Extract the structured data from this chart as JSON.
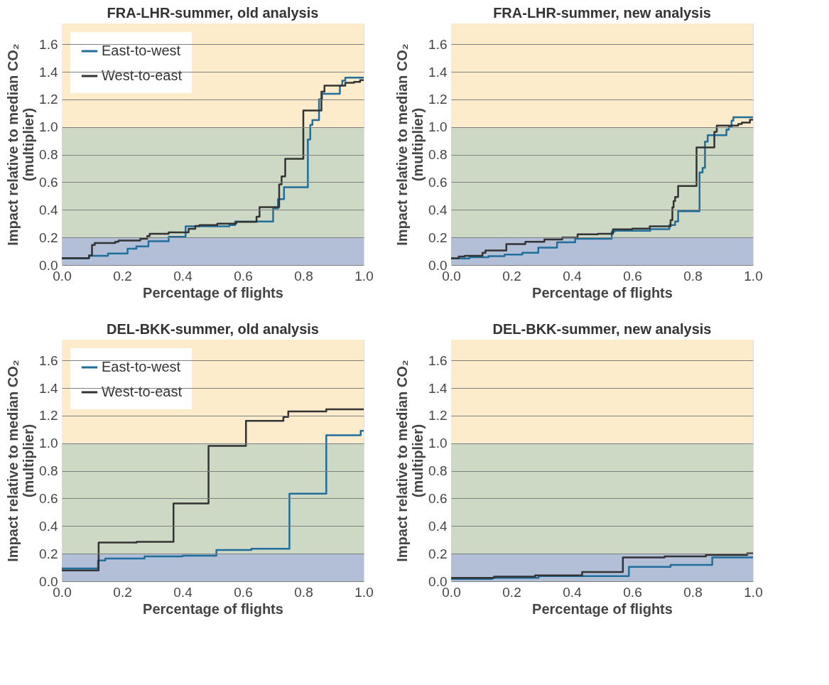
{
  "chart_data": [
    {
      "type": "step",
      "title": "FRA-LHR-summer, old analysis",
      "xlabel": "Percentage of flights",
      "ylabel": "Impact relative to median CO₂ (multiplier)",
      "xlim": [
        0,
        1
      ],
      "ylim": [
        0,
        1.75
      ],
      "xticks": [
        {
          "value": 0,
          "label": "0.0"
        },
        {
          "value": 0.2,
          "label": "0.2"
        },
        {
          "value": 0.4,
          "label": "0.4"
        },
        {
          "value": 0.6,
          "label": "0.6"
        },
        {
          "value": 0.8,
          "label": "0.8"
        },
        {
          "value": 1,
          "label": "1.0"
        }
      ],
      "yticks": [
        {
          "value": 0,
          "label": "0.0"
        },
        {
          "value": 0.2,
          "label": "0.2"
        },
        {
          "value": 0.4,
          "label": "0.4"
        },
        {
          "value": 0.6,
          "label": "0.6"
        },
        {
          "value": 0.8,
          "label": "0.8"
        },
        {
          "value": 1,
          "label": "1.0"
        },
        {
          "value": 1.2,
          "label": "1.2"
        },
        {
          "value": 1.4,
          "label": "1.4"
        },
        {
          "value": 1.6,
          "label": "1.6"
        }
      ],
      "grid": "y",
      "legend": "top left",
      "line_style": "solid",
      "marker": "none",
      "bands": [
        {
          "axis": "y",
          "from": 0,
          "to": 0.2,
          "color": "#b3bfd7"
        },
        {
          "axis": "y",
          "from": 0.2,
          "to": 1.0,
          "color": "#cdd8c5"
        },
        {
          "axis": "y",
          "from": 1.0,
          "to": 1.75,
          "color": "#fdeccc"
        }
      ],
      "series": [
        {
          "name": "East-to-west",
          "color": "#1f6e9c",
          "x": [
            0,
            0.09,
            0.153,
            0.218,
            0.247,
            0.287,
            0.354,
            0.41,
            0.555,
            0.574,
            0.7,
            0.716,
            0.736,
            0.815,
            0.823,
            0.83,
            0.852,
            0.862,
            0.921,
            0.929,
            0.939,
            1.0
          ],
          "values": [
            0.047,
            0.067,
            0.084,
            0.118,
            0.135,
            0.173,
            0.204,
            0.28,
            0.29,
            0.315,
            0.41,
            0.477,
            0.564,
            0.91,
            1.015,
            1.05,
            1.2,
            1.24,
            1.3,
            1.336,
            1.357,
            1.357
          ]
        },
        {
          "name": "West-to-east",
          "color": "#333333",
          "x": [
            0,
            0.09,
            0.1,
            0.109,
            0.177,
            0.188,
            0.26,
            0.283,
            0.291,
            0.354,
            0.42,
            0.442,
            0.456,
            0.515,
            0.578,
            0.645,
            0.655,
            0.72,
            0.728,
            0.74,
            0.8,
            0.86,
            0.87,
            0.939,
            0.968,
            0.988,
            1.0
          ],
          "values": [
            0.05,
            0.069,
            0.145,
            0.16,
            0.168,
            0.177,
            0.19,
            0.21,
            0.227,
            0.237,
            0.263,
            0.283,
            0.29,
            0.3,
            0.313,
            0.35,
            0.42,
            0.584,
            0.642,
            0.77,
            1.12,
            1.256,
            1.3,
            1.32,
            1.327,
            1.34,
            1.34
          ]
        }
      ]
    },
    {
      "type": "step",
      "title": "FRA-LHR-summer, new analysis",
      "xlabel": "Percentage of flights",
      "ylabel": "Impact relative to median CO₂ (multiplier)",
      "xlim": [
        0,
        1
      ],
      "ylim": [
        0,
        1.75
      ],
      "xticks": [
        {
          "value": 0,
          "label": "0.0"
        },
        {
          "value": 0.2,
          "label": "0.2"
        },
        {
          "value": 0.4,
          "label": "0.4"
        },
        {
          "value": 0.6,
          "label": "0.6"
        },
        {
          "value": 0.8,
          "label": "0.8"
        },
        {
          "value": 1,
          "label": "1.0"
        }
      ],
      "yticks": [
        {
          "value": 0,
          "label": "0.0"
        },
        {
          "value": 0.2,
          "label": "0.2"
        },
        {
          "value": 0.4,
          "label": "0.4"
        },
        {
          "value": 0.6,
          "label": "0.6"
        },
        {
          "value": 0.8,
          "label": "0.8"
        },
        {
          "value": 1,
          "label": "1.0"
        },
        {
          "value": 1.2,
          "label": "1.2"
        },
        {
          "value": 1.4,
          "label": "1.4"
        },
        {
          "value": 1.6,
          "label": "1.6"
        }
      ],
      "grid": "y",
      "line_style": "solid",
      "marker": "none",
      "bands": [
        {
          "axis": "y",
          "from": 0,
          "to": 0.2,
          "color": "#b3bfd7"
        },
        {
          "axis": "y",
          "from": 0.2,
          "to": 1.0,
          "color": "#cdd8c5"
        },
        {
          "axis": "y",
          "from": 1.0,
          "to": 1.75,
          "color": "#fdeccc"
        }
      ],
      "series": [
        {
          "color": "#1f6e9c",
          "x": [
            0,
            0.061,
            0.124,
            0.177,
            0.236,
            0.289,
            0.351,
            0.411,
            0.532,
            0.541,
            0.66,
            0.723,
            0.742,
            0.752,
            0.823,
            0.833,
            0.841,
            0.85,
            0.912,
            0.92,
            0.929,
            0.935,
            1.0
          ],
          "values": [
            0.047,
            0.056,
            0.064,
            0.076,
            0.089,
            0.126,
            0.165,
            0.19,
            0.24,
            0.248,
            0.26,
            0.29,
            0.315,
            0.39,
            0.67,
            0.704,
            0.894,
            0.94,
            0.98,
            1.0,
            1.046,
            1.07,
            1.07
          ]
        },
        {
          "color": "#333333",
          "x": [
            0,
            0.025,
            0.045,
            0.104,
            0.114,
            0.183,
            0.246,
            0.309,
            0.368,
            0.419,
            0.486,
            0.536,
            0.6,
            0.658,
            0.727,
            0.733,
            0.737,
            0.742,
            0.752,
            0.813,
            0.872,
            0.88,
            0.951,
            0.963,
            0.99,
            1.0
          ],
          "values": [
            0.049,
            0.062,
            0.067,
            0.089,
            0.106,
            0.152,
            0.168,
            0.185,
            0.199,
            0.222,
            0.227,
            0.258,
            0.264,
            0.28,
            0.325,
            0.418,
            0.463,
            0.493,
            0.573,
            0.852,
            0.965,
            1.01,
            1.022,
            1.032,
            1.053,
            1.053
          ]
        }
      ]
    },
    {
      "type": "step",
      "title": "DEL-BKK-summer, old analysis",
      "xlabel": "Percentage of flights",
      "ylabel": "Impact relative to median CO₂ (multiplier)",
      "xlim": [
        0,
        1
      ],
      "ylim": [
        0,
        1.75
      ],
      "xticks": [
        {
          "value": 0,
          "label": "0.0"
        },
        {
          "value": 0.2,
          "label": "0.2"
        },
        {
          "value": 0.4,
          "label": "0.4"
        },
        {
          "value": 0.6,
          "label": "0.6"
        },
        {
          "value": 0.8,
          "label": "0.8"
        },
        {
          "value": 1,
          "label": "1.0"
        }
      ],
      "yticks": [
        {
          "value": 0,
          "label": "0.0"
        },
        {
          "value": 0.2,
          "label": "0.2"
        },
        {
          "value": 0.4,
          "label": "0.4"
        },
        {
          "value": 0.6,
          "label": "0.6"
        },
        {
          "value": 0.8,
          "label": "0.8"
        },
        {
          "value": 1,
          "label": "1.0"
        },
        {
          "value": 1.2,
          "label": "1.2"
        },
        {
          "value": 1.4,
          "label": "1.4"
        },
        {
          "value": 1.6,
          "label": "1.6"
        }
      ],
      "grid": "y",
      "legend": "top left",
      "line_style": "solid",
      "marker": "none",
      "bands": [
        {
          "axis": "y",
          "from": 0,
          "to": 0.2,
          "color": "#b3bfd7"
        },
        {
          "axis": "y",
          "from": 0.2,
          "to": 1.0,
          "color": "#cdd8c5"
        },
        {
          "axis": "y",
          "from": 1.0,
          "to": 1.75,
          "color": "#fdeccc"
        }
      ],
      "series": [
        {
          "name": "East-to-west",
          "color": "#1f6e9c",
          "x": [
            0,
            0.12,
            0.144,
            0.274,
            0.4,
            0.512,
            0.628,
            0.754,
            0.876,
            0.99,
            1.0
          ],
          "values": [
            0.093,
            0.15,
            0.165,
            0.18,
            0.185,
            0.227,
            0.236,
            0.635,
            1.058,
            1.09,
            1.09
          ]
        },
        {
          "name": "West-to-east",
          "color": "#333333",
          "x": [
            0,
            0.122,
            0.248,
            0.37,
            0.486,
            0.61,
            0.734,
            0.75,
            0.876,
            1.0
          ],
          "values": [
            0.079,
            0.281,
            0.286,
            0.564,
            0.98,
            1.162,
            1.19,
            1.23,
            1.246,
            1.246
          ]
        }
      ]
    },
    {
      "type": "step",
      "title": "DEL-BKK-summer, new analysis",
      "xlabel": "Percentage of flights",
      "ylabel": "Impact relative to median CO₂ (multiplier)",
      "xlim": [
        0,
        1
      ],
      "ylim": [
        0,
        1.75
      ],
      "xticks": [
        {
          "value": 0,
          "label": "0.0"
        },
        {
          "value": 0.2,
          "label": "0.2"
        },
        {
          "value": 0.4,
          "label": "0.4"
        },
        {
          "value": 0.6,
          "label": "0.6"
        },
        {
          "value": 0.8,
          "label": "0.8"
        },
        {
          "value": 1,
          "label": "1.0"
        }
      ],
      "yticks": [
        {
          "value": 0,
          "label": "0.0"
        },
        {
          "value": 0.2,
          "label": "0.2"
        },
        {
          "value": 0.4,
          "label": "0.4"
        },
        {
          "value": 0.6,
          "label": "0.6"
        },
        {
          "value": 0.8,
          "label": "0.8"
        },
        {
          "value": 1,
          "label": "1.0"
        },
        {
          "value": 1.2,
          "label": "1.2"
        },
        {
          "value": 1.4,
          "label": "1.4"
        },
        {
          "value": 1.6,
          "label": "1.6"
        }
      ],
      "grid": "y",
      "line_style": "solid",
      "marker": "none",
      "bands": [
        {
          "axis": "y",
          "from": 0,
          "to": 0.2,
          "color": "#b3bfd7"
        },
        {
          "axis": "y",
          "from": 0.2,
          "to": 1.0,
          "color": "#cdd8c5"
        },
        {
          "axis": "y",
          "from": 1.0,
          "to": 1.75,
          "color": "#fdeccc"
        }
      ],
      "series": [
        {
          "color": "#1f6e9c",
          "x": [
            0,
            0.136,
            0.29,
            0.589,
            0.727,
            0.865,
            1.0
          ],
          "values": [
            0.017,
            0.024,
            0.037,
            0.104,
            0.118,
            0.173,
            0.173
          ]
        },
        {
          "color": "#333333",
          "x": [
            0,
            0.142,
            0.278,
            0.434,
            0.569,
            0.707,
            0.844,
            0.981,
            1.0
          ],
          "values": [
            0.025,
            0.034,
            0.042,
            0.067,
            0.172,
            0.18,
            0.19,
            0.202,
            0.202
          ]
        }
      ]
    }
  ]
}
